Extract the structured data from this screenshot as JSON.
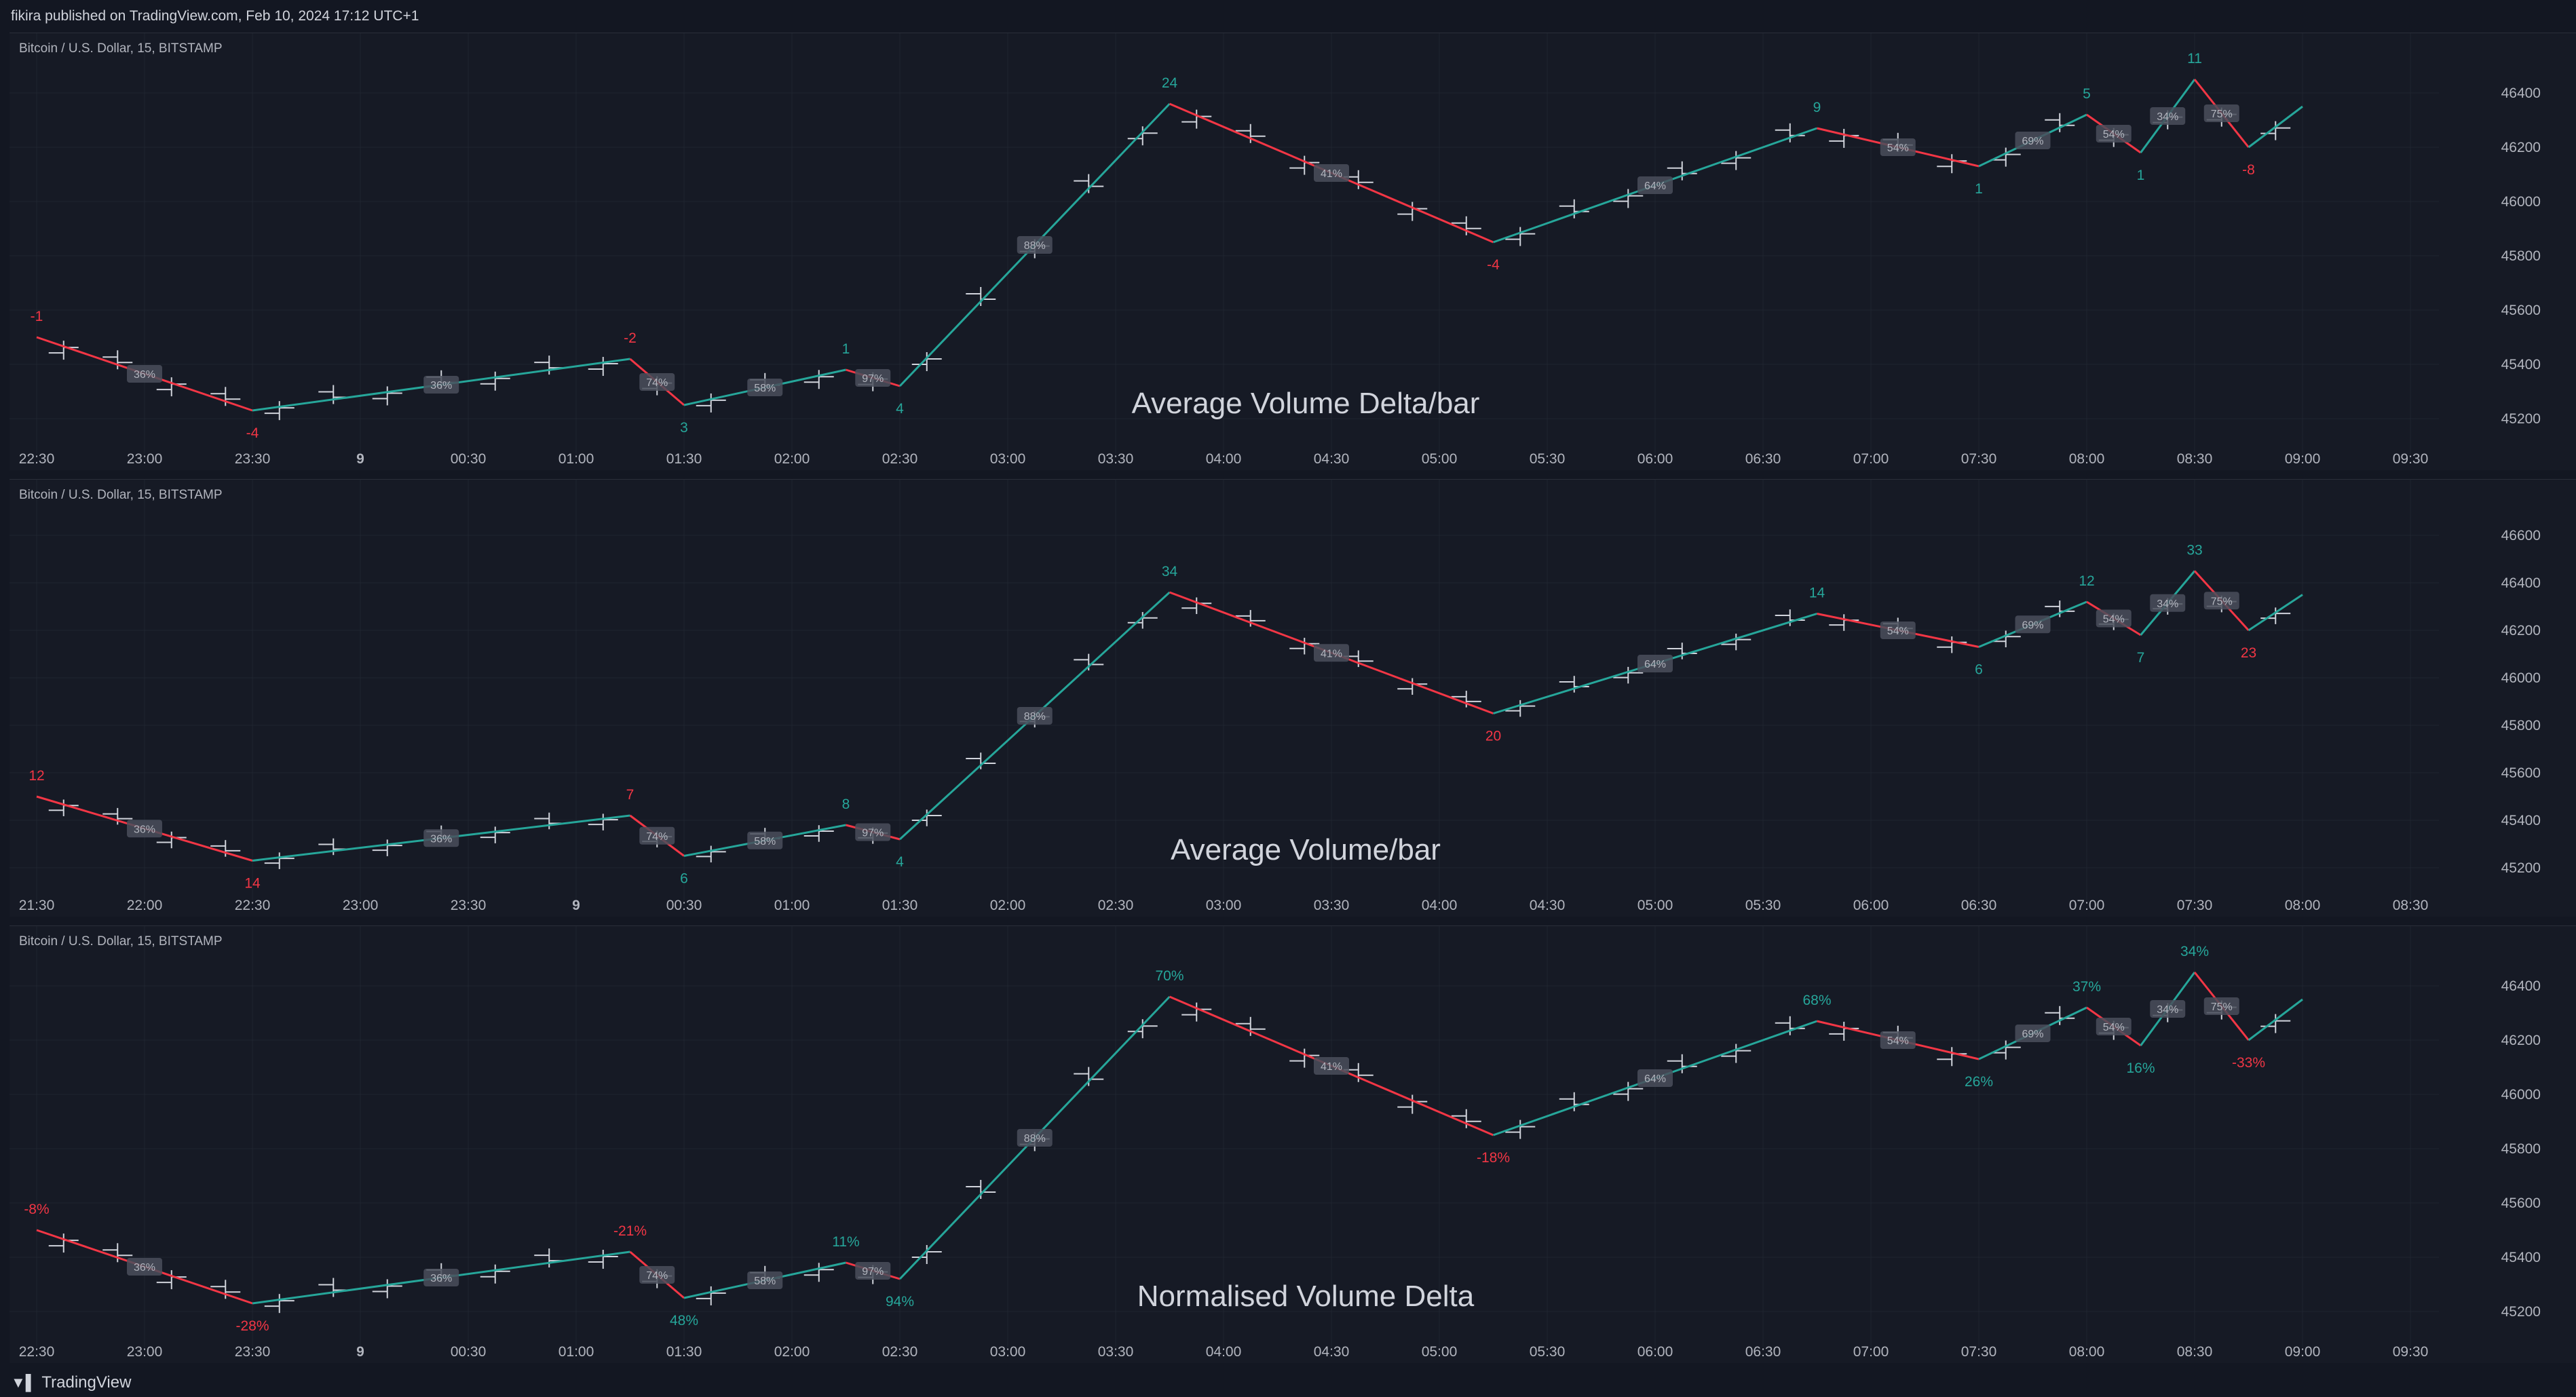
{
  "header": {
    "publisher": "fikira published on TradingView.com, Feb 10, 2024 17:12 UTC+1"
  },
  "footer": {
    "brand": "TradingView"
  },
  "colors": {
    "background": "#161a25",
    "up": "#26a69a",
    "down": "#f23645",
    "bars": "#d1d4dc",
    "grid": "#1f2430",
    "axis_text": "#b2b5be"
  },
  "chart_data": [
    {
      "type": "line",
      "symbol": "Bitcoin / U.S. Dollar, 15, BITSTAMP",
      "watermark": "Average Volume Delta/bar",
      "x_ticks": [
        "22:30",
        "23:00",
        "23:30",
        "9",
        "00:30",
        "01:00",
        "01:30",
        "02:00",
        "02:30",
        "03:00",
        "03:30",
        "04:00",
        "04:30",
        "05:00",
        "05:30",
        "06:00",
        "06:30",
        "07:00",
        "07:30",
        "08:00",
        "08:30",
        "09:00",
        "09:30"
      ],
      "y_ticks": [
        45200,
        45400,
        45600,
        45800,
        46000,
        46200,
        46400
      ],
      "ylim": [
        45120,
        46520
      ],
      "zigzag": [
        {
          "t": "22:30",
          "price": 45500,
          "label": "-1",
          "dir": "down"
        },
        {
          "t": "23:30",
          "price": 45230,
          "label": "-4",
          "dir": "down"
        },
        {
          "t": "01:15",
          "price": 45420,
          "label": "-2",
          "dir": "down"
        },
        {
          "t": "01:30",
          "price": 45250,
          "label": "3",
          "dir": "up"
        },
        {
          "t": "02:15",
          "price": 45380,
          "label": "1",
          "dir": "up"
        },
        {
          "t": "02:30",
          "price": 45320,
          "label": "4",
          "dir": "up"
        },
        {
          "t": "03:45",
          "price": 46360,
          "label": "24",
          "dir": "up"
        },
        {
          "t": "05:15",
          "price": 45850,
          "label": "-4",
          "dir": "down"
        },
        {
          "t": "06:45",
          "price": 46270,
          "label": "9",
          "dir": "up"
        },
        {
          "t": "07:30",
          "price": 46130,
          "label": "1",
          "dir": "up"
        },
        {
          "t": "08:00",
          "price": 46320,
          "label": "5",
          "dir": "up"
        },
        {
          "t": "08:15",
          "price": 46180,
          "label": "1",
          "dir": "up"
        },
        {
          "t": "08:30",
          "price": 46450,
          "label": "11",
          "dir": "up"
        },
        {
          "t": "08:45",
          "price": 46200,
          "label": "-8",
          "dir": "down"
        },
        {
          "t": "09:00",
          "price": 46350,
          "label": "",
          "dir": "up"
        }
      ],
      "retracements": [
        "36%",
        "36%",
        "74%",
        "58%",
        "97%",
        "88%",
        "41%",
        "64%",
        "54%",
        "69%",
        "54%",
        "34%",
        "75%"
      ]
    },
    {
      "type": "line",
      "symbol": "Bitcoin / U.S. Dollar, 15, BITSTAMP",
      "watermark": "Average Volume/bar",
      "x_ticks": [
        "21:30",
        "22:00",
        "22:30",
        "23:00",
        "23:30",
        "9",
        "00:30",
        "01:00",
        "01:30",
        "02:00",
        "02:30",
        "03:00",
        "03:30",
        "04:00",
        "04:30",
        "05:00",
        "05:30",
        "06:00",
        "06:30",
        "07:00",
        "07:30",
        "08:00",
        "08:30"
      ],
      "y_ticks": [
        45200,
        45400,
        45600,
        45800,
        46000,
        46200,
        46400,
        46600
      ],
      "ylim": [
        45120,
        46720
      ],
      "zigzag": [
        {
          "t": "21:30",
          "price": 45500,
          "label": "12",
          "dir": "down"
        },
        {
          "t": "22:30",
          "price": 45230,
          "label": "14",
          "dir": "down"
        },
        {
          "t": "00:15",
          "price": 45420,
          "label": "7",
          "dir": "down"
        },
        {
          "t": "00:30",
          "price": 45250,
          "label": "6",
          "dir": "up"
        },
        {
          "t": "01:15",
          "price": 45380,
          "label": "8",
          "dir": "up"
        },
        {
          "t": "01:30",
          "price": 45320,
          "label": "4",
          "dir": "up"
        },
        {
          "t": "02:45",
          "price": 46360,
          "label": "34",
          "dir": "up"
        },
        {
          "t": "04:15",
          "price": 45850,
          "label": "20",
          "dir": "down"
        },
        {
          "t": "05:45",
          "price": 46270,
          "label": "14",
          "dir": "up"
        },
        {
          "t": "06:30",
          "price": 46130,
          "label": "6",
          "dir": "up"
        },
        {
          "t": "07:00",
          "price": 46320,
          "label": "12",
          "dir": "up"
        },
        {
          "t": "07:15",
          "price": 46180,
          "label": "7",
          "dir": "up"
        },
        {
          "t": "07:30",
          "price": 46450,
          "label": "33",
          "dir": "up"
        },
        {
          "t": "07:45",
          "price": 46200,
          "label": "23",
          "dir": "down"
        },
        {
          "t": "08:00",
          "price": 46350,
          "label": "",
          "dir": "up"
        }
      ],
      "retracements": [
        "36%",
        "36%",
        "74%",
        "58%",
        "97%",
        "88%",
        "41%",
        "64%",
        "54%",
        "69%",
        "54%",
        "34%",
        "75%"
      ]
    },
    {
      "type": "line",
      "symbol": "Bitcoin / U.S. Dollar, 15, BITSTAMP",
      "watermark": "Normalised Volume Delta",
      "x_ticks": [
        "22:30",
        "23:00",
        "23:30",
        "9",
        "00:30",
        "01:00",
        "01:30",
        "02:00",
        "02:30",
        "03:00",
        "03:30",
        "04:00",
        "04:30",
        "05:00",
        "05:30",
        "06:00",
        "06:30",
        "07:00",
        "07:30",
        "08:00",
        "08:30",
        "09:00",
        "09:30"
      ],
      "y_ticks": [
        45200,
        45400,
        45600,
        45800,
        46000,
        46200,
        46400
      ],
      "ylim": [
        45120,
        46520
      ],
      "zigzag": [
        {
          "t": "22:30",
          "price": 45500,
          "label": "-8%",
          "dir": "down"
        },
        {
          "t": "23:30",
          "price": 45230,
          "label": "-28%",
          "dir": "down"
        },
        {
          "t": "01:15",
          "price": 45420,
          "label": "-21%",
          "dir": "down"
        },
        {
          "t": "01:30",
          "price": 45250,
          "label": "48%",
          "dir": "up"
        },
        {
          "t": "02:15",
          "price": 45380,
          "label": "11%",
          "dir": "up"
        },
        {
          "t": "02:30",
          "price": 45320,
          "label": "94%",
          "dir": "up"
        },
        {
          "t": "03:45",
          "price": 46360,
          "label": "70%",
          "dir": "up"
        },
        {
          "t": "05:15",
          "price": 45850,
          "label": "-18%",
          "dir": "down"
        },
        {
          "t": "06:45",
          "price": 46270,
          "label": "68%",
          "dir": "up"
        },
        {
          "t": "07:30",
          "price": 46130,
          "label": "26%",
          "dir": "up"
        },
        {
          "t": "08:00",
          "price": 46320,
          "label": "37%",
          "dir": "up"
        },
        {
          "t": "08:15",
          "price": 46180,
          "label": "16%",
          "dir": "up"
        },
        {
          "t": "08:30",
          "price": 46450,
          "label": "34%",
          "dir": "up"
        },
        {
          "t": "08:45",
          "price": 46200,
          "label": "-33%",
          "dir": "down"
        },
        {
          "t": "09:00",
          "price": 46350,
          "label": "",
          "dir": "up"
        }
      ],
      "retracements": [
        "36%",
        "36%",
        "74%",
        "58%",
        "97%",
        "88%",
        "41%",
        "64%",
        "54%",
        "69%",
        "54%",
        "34%",
        "75%"
      ]
    }
  ]
}
